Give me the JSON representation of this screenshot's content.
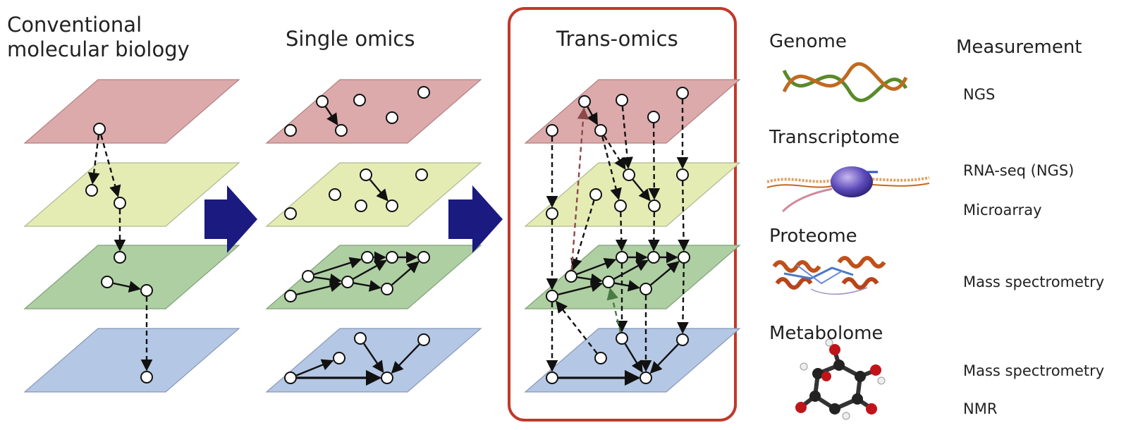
{
  "columns": {
    "conventional": "Conventional\nmolecular biology",
    "single": "Single omics",
    "trans": "Trans-omics"
  },
  "layers": [
    {
      "name": "Genome",
      "color": "#dcaaab",
      "edge": "#b08080"
    },
    {
      "name": "Transcriptome",
      "color": "#e4ecb4",
      "edge": "#b0b890"
    },
    {
      "name": "Proteome",
      "color": "#aecfa2",
      "edge": "#80a078"
    },
    {
      "name": "Metabolome",
      "color": "#b4c7e5",
      "edge": "#8898b8"
    }
  ],
  "header": {
    "measurement": "Measurement"
  },
  "measurements": [
    "NGS",
    "RNA-seq (NGS)",
    "Microarray",
    "Mass spectrometry",
    "Mass spectrometry",
    "NMR"
  ],
  "colors": {
    "arrow": "#1a1a80",
    "highlight_box": "#c0392b"
  },
  "icons": [
    "dna-helix-icon",
    "rna-polymerase-icon",
    "protein-structure-icon",
    "glucose-molecule-icon"
  ]
}
